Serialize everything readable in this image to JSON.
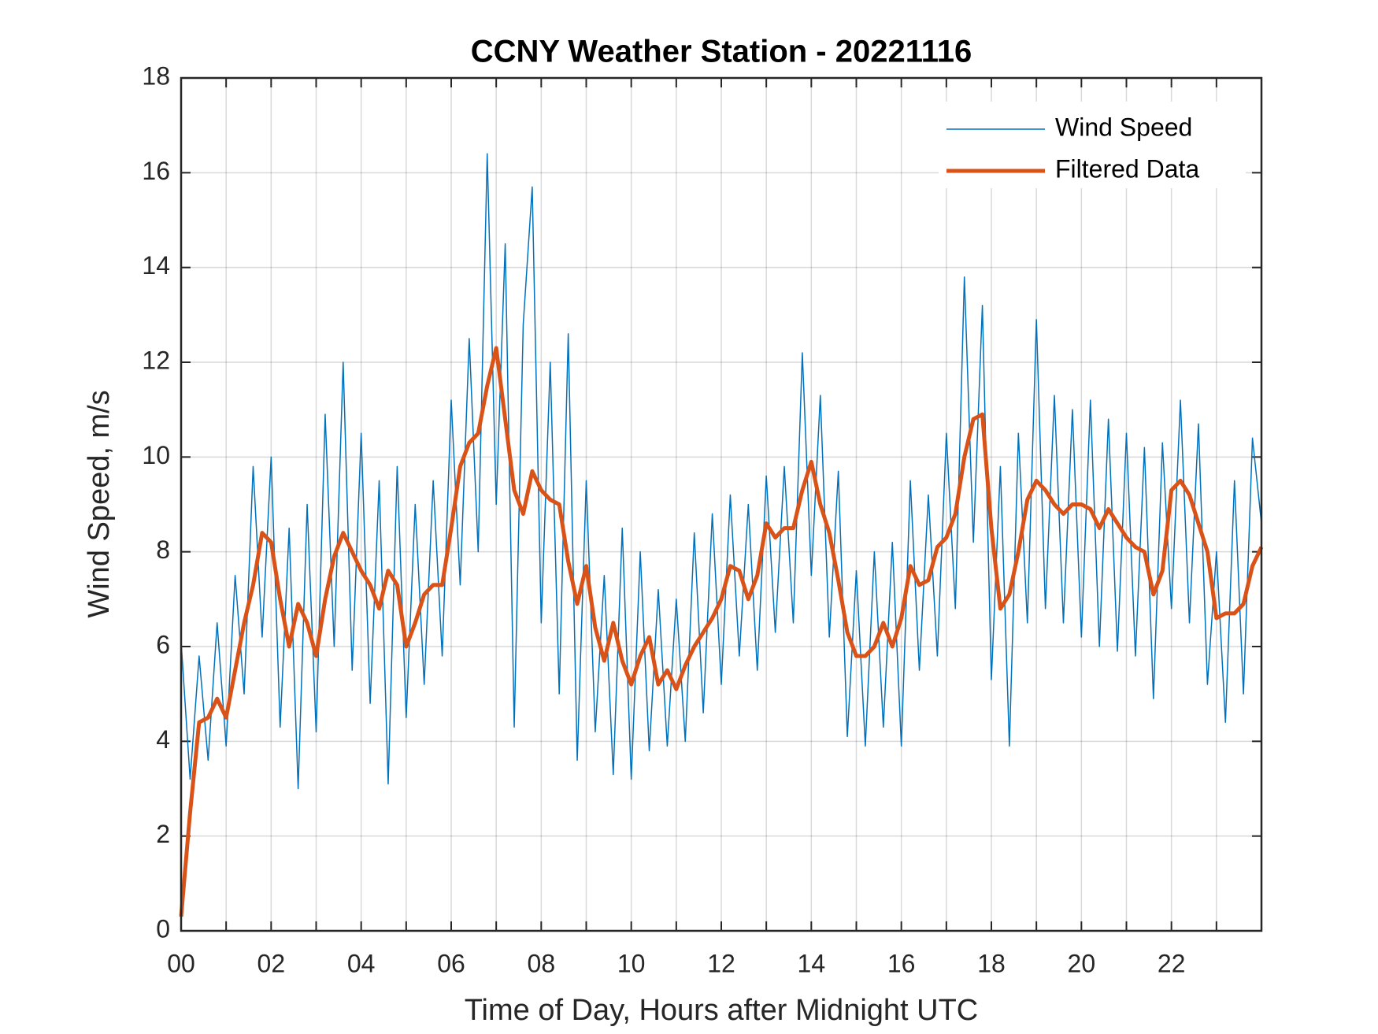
{
  "chart_data": {
    "type": "line",
    "title": "CCNY Weather Station - 20221116",
    "x_label": "Time of Day, Hours after Midnight UTC",
    "y_label": "Wind Speed, m/s",
    "xlim": [
      0,
      24
    ],
    "ylim": [
      0,
      18
    ],
    "xticks": [
      {
        "value": 0,
        "label": "00"
      },
      {
        "value": 2,
        "label": "02"
      },
      {
        "value": 4,
        "label": "04"
      },
      {
        "value": 6,
        "label": "06"
      },
      {
        "value": 8,
        "label": "08"
      },
      {
        "value": 10,
        "label": "10"
      },
      {
        "value": 12,
        "label": "12"
      },
      {
        "value": 14,
        "label": "14"
      },
      {
        "value": 16,
        "label": "16"
      },
      {
        "value": 18,
        "label": "18"
      },
      {
        "value": 20,
        "label": "20"
      },
      {
        "value": 22,
        "label": "22"
      }
    ],
    "xminorticks": [
      1,
      3,
      5,
      7,
      9,
      11,
      13,
      15,
      17,
      19,
      21,
      23
    ],
    "yticks": [
      0,
      2,
      4,
      6,
      8,
      10,
      12,
      14,
      16,
      18
    ],
    "grid": true,
    "legend": "northeast",
    "x": [
      0,
      0.2,
      0.4,
      0.6,
      0.8,
      1,
      1.2,
      1.4,
      1.6,
      1.8,
      2,
      2.2,
      2.4,
      2.6,
      2.8,
      3,
      3.2,
      3.4,
      3.6,
      3.8,
      4,
      4.2,
      4.4,
      4.6,
      4.8,
      5,
      5.2,
      5.4,
      5.6,
      5.8,
      6,
      6.2,
      6.4,
      6.6,
      6.8,
      7,
      7.2,
      7.4,
      7.6,
      7.8,
      8,
      8.2,
      8.4,
      8.6,
      8.8,
      9,
      9.2,
      9.4,
      9.6,
      9.8,
      10,
      10.2,
      10.4,
      10.6,
      10.8,
      11,
      11.2,
      11.4,
      11.6,
      11.8,
      12,
      12.2,
      12.4,
      12.6,
      12.8,
      13,
      13.2,
      13.4,
      13.6,
      13.8,
      14,
      14.2,
      14.4,
      14.6,
      14.8,
      15,
      15.2,
      15.4,
      15.6,
      15.8,
      16,
      16.2,
      16.4,
      16.6,
      16.8,
      17,
      17.2,
      17.4,
      17.6,
      17.8,
      18,
      18.2,
      18.4,
      18.6,
      18.8,
      19,
      19.2,
      19.4,
      19.6,
      19.8,
      20,
      20.2,
      20.4,
      20.6,
      20.8,
      21,
      21.2,
      21.4,
      21.6,
      21.8,
      22,
      22.2,
      22.4,
      22.6,
      22.8,
      23,
      23.2,
      23.4,
      23.6,
      23.8,
      24
    ],
    "series": [
      {
        "name": "Wind Speed",
        "color": "#0072bd",
        "width": 1.5,
        "values": [
          6.1,
          3.2,
          5.8,
          3.6,
          6.5,
          3.9,
          7.5,
          5.0,
          9.8,
          6.2,
          10.0,
          4.3,
          8.5,
          3.0,
          9.0,
          4.2,
          10.9,
          6.0,
          12.0,
          5.5,
          10.5,
          4.8,
          9.5,
          3.1,
          9.8,
          4.5,
          9.0,
          5.2,
          9.5,
          5.8,
          11.2,
          7.3,
          12.5,
          8.0,
          16.4,
          9.0,
          14.5,
          4.3,
          12.8,
          15.7,
          6.5,
          12.0,
          5.0,
          12.6,
          3.6,
          9.5,
          4.2,
          7.5,
          3.3,
          8.5,
          3.2,
          8.0,
          3.8,
          7.2,
          3.9,
          7.0,
          4.0,
          8.4,
          4.6,
          8.8,
          5.2,
          9.2,
          5.8,
          9.0,
          5.5,
          9.6,
          6.3,
          9.8,
          6.5,
          12.2,
          7.5,
          11.3,
          6.2,
          9.7,
          4.1,
          7.6,
          3.9,
          8.0,
          4.3,
          8.2,
          3.9,
          9.5,
          5.5,
          9.2,
          5.8,
          10.5,
          6.8,
          13.8,
          8.2,
          13.2,
          5.3,
          9.8,
          3.9,
          10.5,
          6.5,
          12.9,
          6.8,
          11.3,
          6.5,
          11.0,
          6.2,
          11.2,
          6.0,
          10.8,
          5.9,
          10.5,
          5.8,
          10.2,
          4.9,
          10.3,
          6.8,
          11.2,
          6.5,
          10.7,
          5.2,
          8.0,
          4.4,
          9.5,
          5.0,
          10.4,
          8.6
        ]
      },
      {
        "name": "Filtered Data",
        "color": "#d95319",
        "width": 5,
        "values": [
          0.3,
          2.5,
          4.4,
          4.5,
          4.9,
          4.5,
          5.5,
          6.5,
          7.3,
          8.4,
          8.2,
          7.0,
          6.0,
          6.9,
          6.5,
          5.8,
          7.0,
          7.9,
          8.4,
          8.0,
          7.6,
          7.3,
          6.8,
          7.6,
          7.3,
          6.0,
          6.5,
          7.1,
          7.3,
          7.3,
          8.5,
          9.8,
          10.3,
          10.5,
          11.5,
          12.3,
          10.8,
          9.3,
          8.8,
          9.7,
          9.3,
          9.1,
          9.0,
          7.8,
          6.9,
          7.7,
          6.4,
          5.7,
          6.5,
          5.7,
          5.2,
          5.8,
          6.2,
          5.2,
          5.5,
          5.1,
          5.6,
          6.0,
          6.3,
          6.6,
          7.0,
          7.7,
          7.6,
          7.0,
          7.5,
          8.6,
          8.3,
          8.5,
          8.5,
          9.3,
          9.9,
          9.0,
          8.4,
          7.4,
          6.3,
          5.8,
          5.8,
          6.0,
          6.5,
          6.0,
          6.6,
          7.7,
          7.3,
          7.4,
          8.1,
          8.3,
          8.8,
          10.0,
          10.8,
          10.9,
          8.5,
          6.8,
          7.1,
          8.0,
          9.1,
          9.5,
          9.3,
          9.0,
          8.8,
          9.0,
          9.0,
          8.9,
          8.5,
          8.9,
          8.6,
          8.3,
          8.1,
          8.0,
          7.1,
          7.6,
          9.3,
          9.5,
          9.2,
          8.6,
          8.0,
          6.6,
          6.7,
          6.7,
          6.9,
          7.7,
          8.1
        ]
      }
    ]
  }
}
